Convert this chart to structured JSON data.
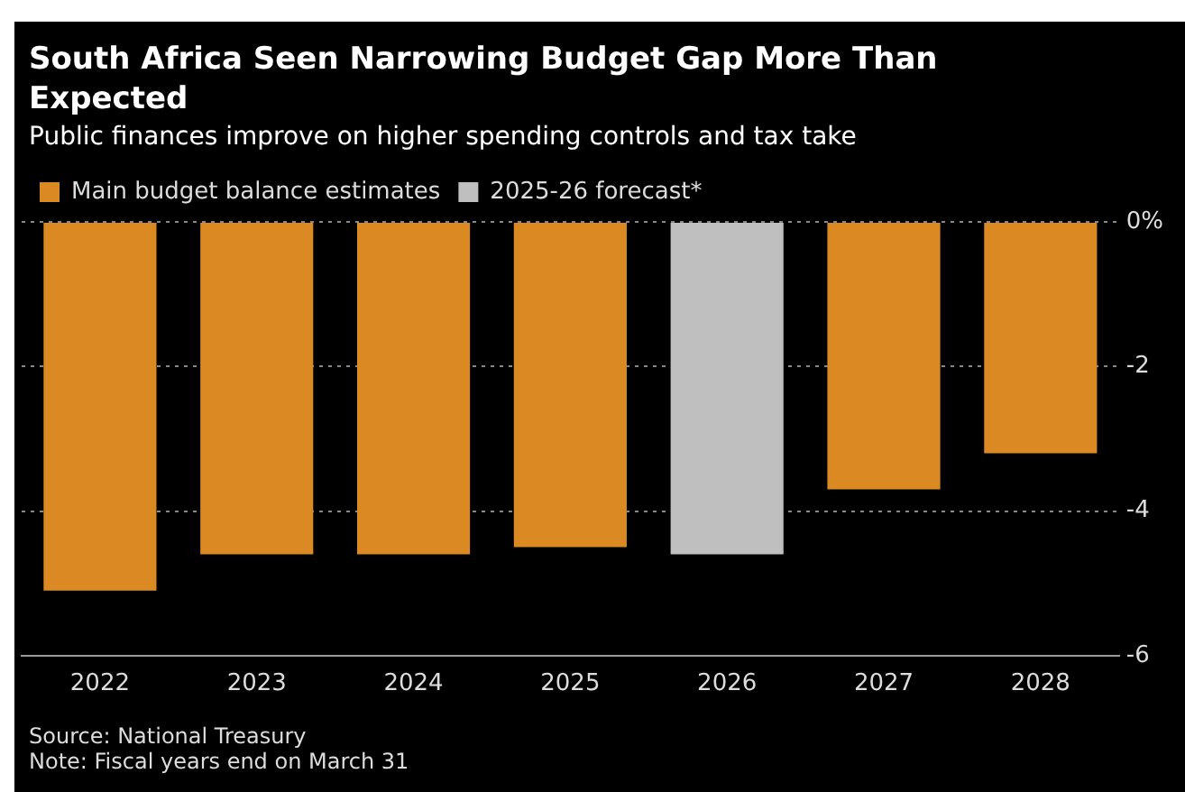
{
  "chart_data": {
    "type": "bar",
    "title": "South Africa Seen Narrowing Budget Gap More Than Expected",
    "subtitle": "Public finances improve on higher spending controls and tax take",
    "categories": [
      "2022",
      "2023",
      "2024",
      "2025",
      "2026",
      "2027",
      "2028"
    ],
    "series": [
      {
        "name": "Main budget balance estimates",
        "color": "#db8a23",
        "values": [
          -5.1,
          -4.6,
          -4.6,
          -4.5,
          null,
          -3.7,
          -3.2
        ]
      },
      {
        "name": "2025-26 forecast*",
        "color": "#bfbfbf",
        "values": [
          null,
          null,
          null,
          null,
          -4.6,
          null,
          null
        ]
      }
    ],
    "ylim": [
      -6,
      0
    ],
    "yticks": [
      {
        "value": 0,
        "label": "0%"
      },
      -2,
      -4,
      -6
    ],
    "grid": "y",
    "legend": "top left",
    "annotations": [
      "Source: National Treasury",
      "Note: Fiscal years end on March 31"
    ]
  }
}
